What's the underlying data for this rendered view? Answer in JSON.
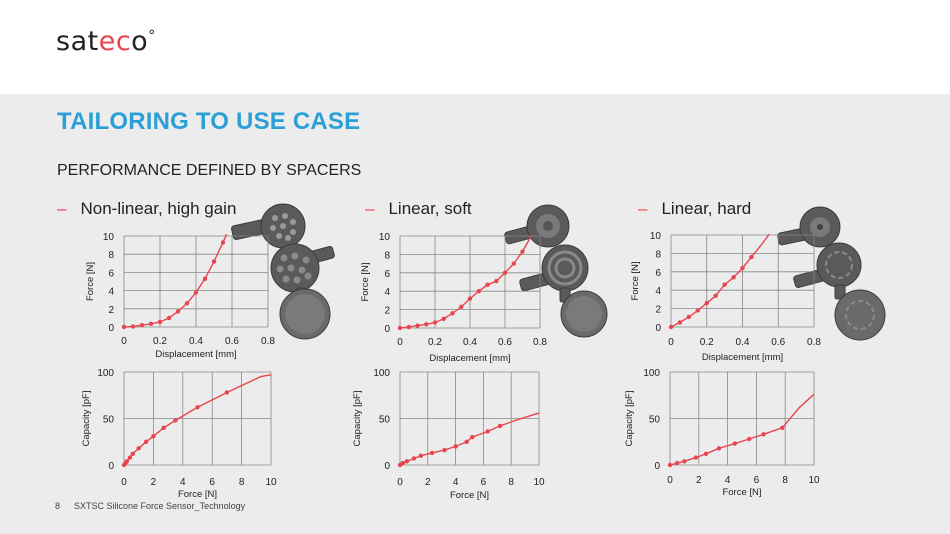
{
  "header": {
    "logo_start": "sat",
    "logo_mid": "ec",
    "logo_end": "o",
    "logo_degree": "°",
    "logo_accent_color": "#e8454f"
  },
  "title": "TAILORING TO USE CASE",
  "subtitle": "PERFORMANCE DEFINED BY SPACERS",
  "columns": [
    {
      "dash": "–",
      "label": "Non-linear, high gain"
    },
    {
      "dash": "–",
      "label": "Linear, soft"
    },
    {
      "dash": "–",
      "label": "Linear, hard"
    }
  ],
  "footer": {
    "page": "8",
    "text": "SXTSC Silicone Force Sensor_Technology"
  },
  "colors": {
    "title": "#2aa0d7",
    "series": "#e8454f",
    "grid": "#888888",
    "background": "#ececec"
  },
  "chart_data": [
    {
      "type": "line",
      "xlabel": "Displacement [mm]",
      "ylabel": "Force [N]",
      "xlim": [
        0,
        0.8
      ],
      "ylim": [
        0,
        10
      ],
      "xticks": [
        0,
        0.2,
        0.4,
        0.6,
        0.8
      ],
      "xtick_labels": [
        "0",
        "0.2",
        "0.4",
        "0.6",
        "0.8"
      ],
      "yticks": [
        0,
        2,
        4,
        6,
        8,
        10
      ],
      "ytick_labels": [
        "0",
        "2",
        "4",
        "6",
        "8",
        "10"
      ],
      "grid": true,
      "x": [
        0,
        0.05,
        0.1,
        0.15,
        0.2,
        0.25,
        0.3,
        0.35,
        0.4,
        0.45,
        0.5,
        0.55,
        0.57
      ],
      "y": [
        0,
        0.05,
        0.2,
        0.35,
        0.55,
        1.0,
        1.7,
        2.6,
        3.8,
        5.3,
        7.2,
        9.3,
        10.2
      ],
      "marker_count": 12
    },
    {
      "type": "line",
      "xlabel": "Displacement [mm]",
      "ylabel": "Force [N]",
      "xlim": [
        0,
        0.8
      ],
      "ylim": [
        0,
        10
      ],
      "xticks": [
        0,
        0.2,
        0.4,
        0.6,
        0.8
      ],
      "xtick_labels": [
        "0",
        "0.2",
        "0.4",
        "0.6",
        "0.8"
      ],
      "yticks": [
        0,
        2,
        4,
        6,
        8,
        10
      ],
      "ytick_labels": [
        "0",
        "2",
        "4",
        "6",
        "8",
        "10"
      ],
      "grid": true,
      "x": [
        0,
        0.05,
        0.1,
        0.15,
        0.2,
        0.25,
        0.3,
        0.35,
        0.4,
        0.45,
        0.5,
        0.55,
        0.6,
        0.65,
        0.7,
        0.75
      ],
      "y": [
        0,
        0.1,
        0.25,
        0.4,
        0.6,
        1.0,
        1.6,
        2.3,
        3.2,
        4.0,
        4.7,
        5.1,
        6.0,
        7.0,
        8.3,
        10.0
      ],
      "marker_count": 15
    },
    {
      "type": "line",
      "xlabel": "Displacement [mm]",
      "ylabel": "Force [N]",
      "xlim": [
        0,
        0.8
      ],
      "ylim": [
        0,
        10
      ],
      "xticks": [
        0,
        0.2,
        0.4,
        0.6,
        0.8
      ],
      "xtick_labels": [
        "0",
        "0.2",
        "0.4",
        "0.6",
        "0.8"
      ],
      "yticks": [
        0,
        2,
        4,
        6,
        8,
        10
      ],
      "ytick_labels": [
        "0",
        "2",
        "4",
        "6",
        "8",
        "10"
      ],
      "grid": true,
      "x": [
        0,
        0.05,
        0.1,
        0.15,
        0.2,
        0.25,
        0.3,
        0.35,
        0.4,
        0.45,
        0.5,
        0.55
      ],
      "y": [
        0,
        0.5,
        1.1,
        1.8,
        2.6,
        3.4,
        4.6,
        5.4,
        6.4,
        7.6,
        8.8,
        10.1
      ],
      "marker_count": 10
    },
    {
      "type": "line",
      "xlabel": "Force [N]",
      "ylabel": "Capacity [pF]",
      "xlim": [
        0,
        10
      ],
      "ylim": [
        0,
        100
      ],
      "xticks": [
        0,
        2,
        4,
        6,
        8,
        10
      ],
      "xtick_labels": [
        "0",
        "2",
        "4",
        "6",
        "8",
        "10"
      ],
      "yticks": [
        0,
        50,
        100
      ],
      "ytick_labels": [
        "0",
        "50",
        "100"
      ],
      "grid": true,
      "x": [
        0,
        0.1,
        0.2,
        0.4,
        0.6,
        1.0,
        1.5,
        2.0,
        2.7,
        3.5,
        5.0,
        7.0,
        9.3,
        10.0
      ],
      "y": [
        0,
        2,
        4,
        8,
        12,
        18,
        25,
        31,
        40,
        48,
        62,
        78,
        95,
        97
      ],
      "marker_count": 12
    },
    {
      "type": "line",
      "xlabel": "Force [N]",
      "ylabel": "Capacity [pF]",
      "xlim": [
        0,
        10
      ],
      "ylim": [
        0,
        100
      ],
      "xticks": [
        0,
        2,
        4,
        6,
        8,
        10
      ],
      "xtick_labels": [
        "0",
        "2",
        "4",
        "6",
        "8",
        "10"
      ],
      "yticks": [
        0,
        50,
        100
      ],
      "ytick_labels": [
        "0",
        "50",
        "100"
      ],
      "grid": true,
      "x": [
        0,
        0.2,
        0.5,
        1.0,
        1.5,
        2.3,
        3.2,
        4.0,
        4.8,
        5.2,
        6.3,
        7.2,
        8.3,
        10.0
      ],
      "y": [
        0,
        2,
        4,
        7,
        10,
        13,
        16,
        20,
        25,
        30,
        36,
        42,
        48,
        56
      ],
      "marker_count": 12
    },
    {
      "type": "line",
      "xlabel": "Force [N]",
      "ylabel": "Capacity [pF]",
      "xlim": [
        0,
        10
      ],
      "ylim": [
        0,
        100
      ],
      "xticks": [
        0,
        2,
        4,
        6,
        8,
        10
      ],
      "xtick_labels": [
        "0",
        "2",
        "4",
        "6",
        "8",
        "10"
      ],
      "yticks": [
        0,
        50,
        100
      ],
      "ytick_labels": [
        "0",
        "50",
        "100"
      ],
      "grid": true,
      "x": [
        0,
        0.5,
        1.0,
        1.8,
        2.5,
        3.4,
        4.5,
        5.5,
        6.5,
        7.8,
        9.0,
        10.0
      ],
      "y": [
        0,
        2,
        4,
        8,
        12,
        18,
        23,
        28,
        33,
        40,
        62,
        76
      ],
      "marker_count": 10
    }
  ]
}
